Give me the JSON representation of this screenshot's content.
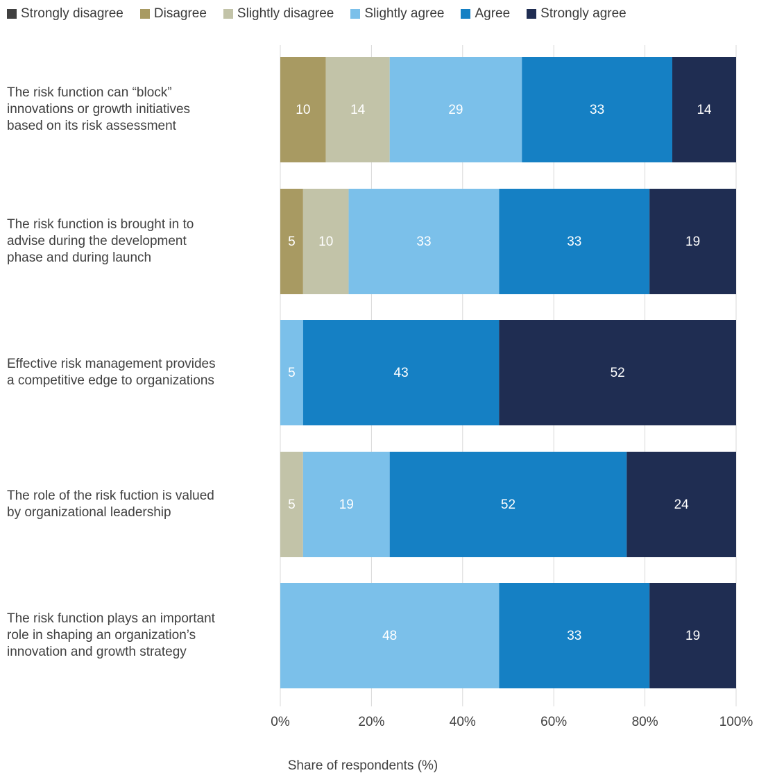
{
  "chart_data": {
    "type": "bar",
    "orientation": "horizontal",
    "stacked": true,
    "xlabel": "Share of respondents (%)",
    "xlim": [
      0,
      100
    ],
    "xticks": [
      "0%",
      "20%",
      "40%",
      "60%",
      "80%",
      "100%"
    ],
    "grid": "vertical",
    "legend_position": "top",
    "categories": [
      "The risk function can “block” innovations or growth initiatives based on its risk assessment",
      "The risk function is brought in to advise during the development phase and during launch",
      "Effective risk management provides a competitive edge to organizations",
      "The role of the risk fuction is valued by organizational leadership",
      "The risk function plays an important role in shaping an organization’s innovation and growth strategy"
    ],
    "category_lines": [
      [
        "The risk function can “block”",
        "innovations or growth initiatives",
        "based on its risk assessment"
      ],
      [
        "The risk function is brought in to",
        "advise during the development",
        "phase and during launch"
      ],
      [
        "Effective risk management provides",
        "a competitive edge to organizations"
      ],
      [
        "The role of the risk fuction is valued",
        "by organizational leadership"
      ],
      [
        "The risk function plays an important",
        "role in shaping an organization’s",
        "innovation and growth strategy"
      ]
    ],
    "series": [
      {
        "name": "Strongly disagree",
        "color": "#404040",
        "values": [
          0,
          0,
          0,
          0,
          0
        ]
      },
      {
        "name": "Disagree",
        "color": "#a89a62",
        "values": [
          10,
          5,
          0,
          0,
          0
        ]
      },
      {
        "name": "Slightly disagree",
        "color": "#c2c3a8",
        "values": [
          14,
          10,
          0,
          5,
          0
        ]
      },
      {
        "name": "Slightly agree",
        "color": "#7bc0ea",
        "values": [
          29,
          33,
          5,
          19,
          48
        ]
      },
      {
        "name": "Agree",
        "color": "#1580c4",
        "values": [
          33,
          33,
          43,
          52,
          33
        ]
      },
      {
        "name": "Strongly agree",
        "color": "#1f2d52",
        "values": [
          14,
          19,
          52,
          24,
          19
        ]
      }
    ]
  }
}
